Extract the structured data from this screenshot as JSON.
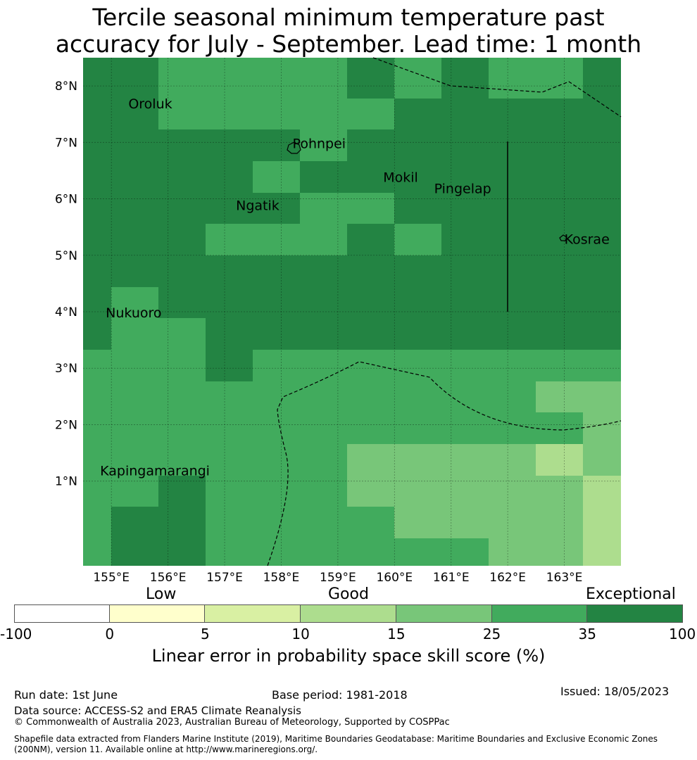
{
  "title": {
    "line1": "Tercile seasonal minimum temperature past",
    "line2": "accuracy for July - September. Lead time: 1 month"
  },
  "map": {
    "lon_range": [
      154.5,
      164.0
    ],
    "lat_range": [
      -0.5,
      8.5
    ],
    "lon_ticks": [
      "155°E",
      "156°E",
      "157°E",
      "158°E",
      "159°E",
      "160°E",
      "161°E",
      "162°E",
      "163°E"
    ],
    "lat_ticks": [
      "1°N",
      "2°N",
      "3°N",
      "4°N",
      "5°N",
      "6°N",
      "7°N",
      "8°N"
    ],
    "places": [
      {
        "name": "Oroluk",
        "lon": 155.3,
        "lat": 7.6
      },
      {
        "name": "Pohnpei",
        "lon": 158.2,
        "lat": 6.9
      },
      {
        "name": "Mokil",
        "lon": 159.8,
        "lat": 6.3
      },
      {
        "name": "Pingelap",
        "lon": 160.7,
        "lat": 6.1
      },
      {
        "name": "Ngatik",
        "lon": 157.2,
        "lat": 5.8
      },
      {
        "name": "Kosrae",
        "lon": 163.0,
        "lat": 5.2
      },
      {
        "name": "Nukuoro",
        "lon": 154.9,
        "lat": 3.9
      },
      {
        "name": "Kapingamarangi",
        "lon": 154.8,
        "lat": 1.1
      }
    ],
    "skill_colors": {
      "c35_100": "#238443",
      "c25_35": "#41ab5d",
      "c15_25": "#78c679",
      "c10_15": "#addd8e"
    }
  },
  "colorbar": {
    "category_labels": {
      "low": "Low",
      "good": "Good",
      "exceptional": "Exceptional"
    },
    "ticks": [
      "-100",
      "0",
      "5",
      "10",
      "15",
      "25",
      "35",
      "100"
    ],
    "colors": [
      "#ffffff",
      "#ffffcc",
      "#d9f0a3",
      "#addd8e",
      "#78c679",
      "#41ab5d",
      "#238443"
    ],
    "label": "Linear error in probability space skill score (%)"
  },
  "footer": {
    "run_date": "Run date: 1st June",
    "base_period": "Base period: 1981-2018",
    "issued": "Issued: 18/05/2023",
    "data_source": "Data source: ACCESS-S2 and ERA5 Climate Reanalysis",
    "copyright": "© Commonwealth of Australia 2023, Australian Bureau of Meteorology, Supported by COSPPac",
    "shapefile_line1": "Shapefile data extracted from Flanders Marine Institute (2019), Maritime Boundaries Geodatabase: Maritime Boundaries and Exclusive Economic Zones",
    "shapefile_line2": "(200NM), version 11. Available online at http://www.marineregions.org/."
  }
}
